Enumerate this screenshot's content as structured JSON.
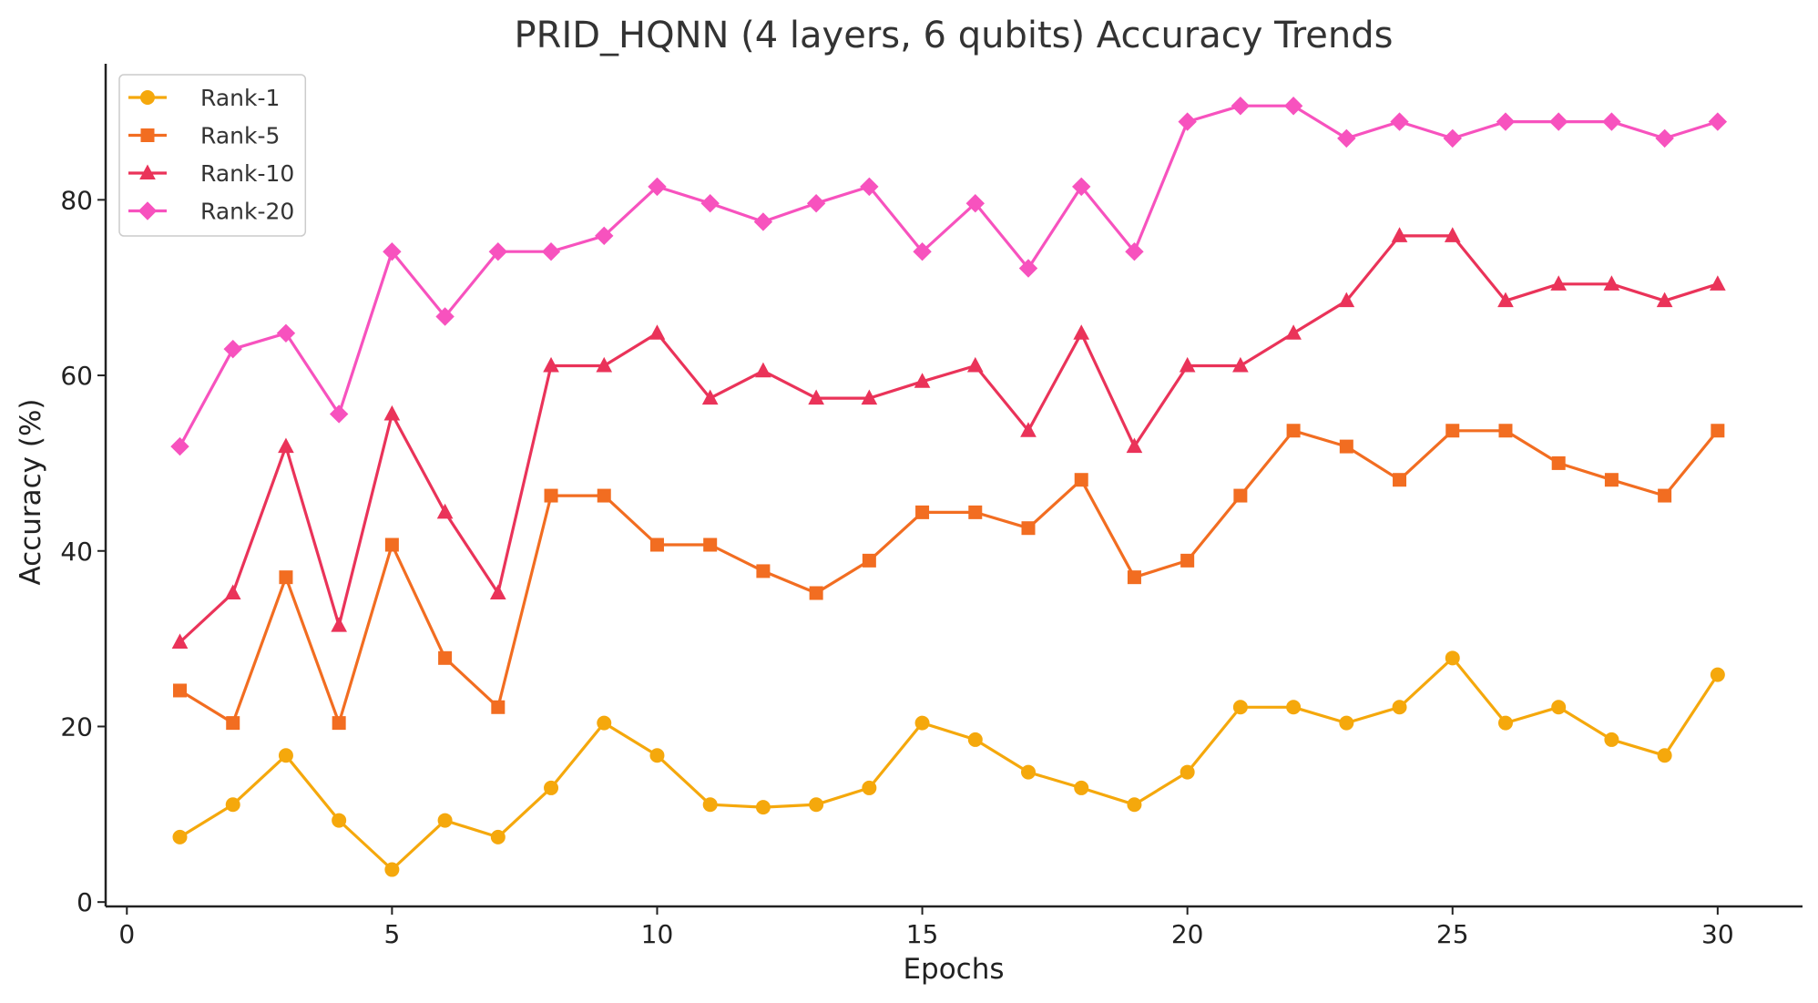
{
  "chart_data": {
    "type": "line",
    "title": "PRID_HQNN (4 layers, 6 qubits) Accuracy Trends",
    "xlabel": "Epochs",
    "ylabel": "Accuracy (%)",
    "xlim": [
      -0.4,
      31.6
    ],
    "ylim": [
      -0.5,
      95.5
    ],
    "xticks": [
      0,
      5,
      10,
      15,
      20,
      25,
      30
    ],
    "yticks": [
      0,
      20,
      40,
      60,
      80
    ],
    "grid": false,
    "legend_position": "top-left",
    "x": [
      1,
      2,
      3,
      4,
      5,
      6,
      7,
      8,
      9,
      10,
      11,
      12,
      13,
      14,
      15,
      16,
      17,
      18,
      19,
      20,
      21,
      22,
      23,
      24,
      25,
      26,
      27,
      28,
      29,
      30
    ],
    "series": [
      {
        "name": "Rank-1",
        "color": "#f5a80c",
        "marker": "circle",
        "values": [
          7.4,
          11.1,
          16.7,
          9.3,
          3.7,
          9.3,
          7.4,
          13.0,
          20.4,
          16.7,
          11.1,
          10.8,
          11.1,
          13.0,
          20.4,
          18.5,
          14.8,
          13.0,
          11.1,
          14.8,
          22.2,
          22.2,
          20.4,
          22.2,
          27.8,
          20.4,
          22.2,
          18.5,
          16.7,
          25.9
        ]
      },
      {
        "name": "Rank-5",
        "color": "#f26d21",
        "marker": "square",
        "values": [
          24.1,
          20.4,
          37.0,
          20.4,
          40.7,
          27.8,
          22.2,
          46.3,
          46.3,
          40.7,
          40.7,
          37.7,
          35.2,
          38.9,
          44.4,
          44.4,
          42.6,
          48.1,
          37.0,
          38.9,
          46.3,
          53.7,
          51.9,
          48.1,
          53.7,
          53.7,
          50.0,
          48.1,
          46.3,
          53.7
        ]
      },
      {
        "name": "Rank-10",
        "color": "#ea3359",
        "marker": "triangle",
        "values": [
          29.6,
          35.2,
          51.9,
          31.5,
          55.6,
          44.4,
          35.2,
          61.1,
          61.1,
          64.8,
          57.4,
          60.5,
          57.4,
          57.4,
          59.3,
          61.1,
          53.7,
          64.8,
          51.9,
          61.1,
          61.1,
          64.8,
          68.5,
          75.9,
          75.9,
          68.5,
          70.4,
          70.4,
          68.5,
          70.4
        ]
      },
      {
        "name": "Rank-20",
        "color": "#f752be",
        "marker": "diamond",
        "values": [
          51.9,
          63.0,
          64.8,
          55.6,
          74.1,
          66.7,
          74.1,
          74.1,
          75.9,
          81.5,
          79.6,
          77.5,
          79.6,
          81.5,
          74.1,
          79.6,
          72.2,
          81.5,
          74.1,
          88.9,
          90.7,
          90.7,
          87.0,
          88.9,
          87.0,
          88.9,
          88.9,
          88.9,
          87.0,
          88.9
        ]
      }
    ]
  }
}
